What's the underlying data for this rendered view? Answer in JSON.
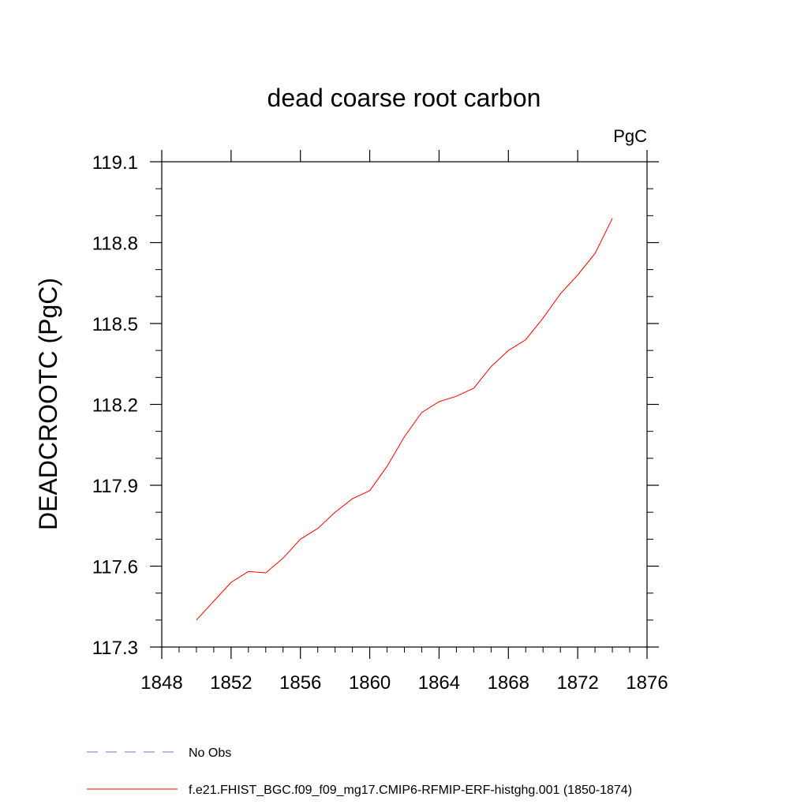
{
  "chart_data": {
    "type": "line",
    "title": "dead coarse root carbon",
    "units_label": "PgC",
    "xlabel": "",
    "ylabel": "DEADCROOTC  (PgC)",
    "xlim": [
      1848,
      1876
    ],
    "ylim": [
      117.3,
      119.1
    ],
    "x_ticks": [
      1848,
      1852,
      1856,
      1860,
      1864,
      1868,
      1872,
      1876
    ],
    "x_tick_labels": [
      "1848",
      "1852",
      "1856",
      "1860",
      "1864",
      "1868",
      "1872",
      "1876"
    ],
    "y_ticks": [
      117.3,
      117.6,
      117.9,
      118.2,
      118.5,
      118.8,
      119.1
    ],
    "y_tick_labels": [
      "117.3",
      "117.6",
      "117.9",
      "118.2",
      "118.5",
      "118.8",
      "119.1"
    ],
    "grid": false,
    "legend_position": "bottom",
    "series": [
      {
        "name": "f.e21.FHIST_BGC.f09_f09_mg17.CMIP6-RFMIP-ERF-histghg.001 (1850-1874)",
        "color": "#ff0000",
        "style": "solid",
        "x": [
          1850,
          1851,
          1852,
          1853,
          1854,
          1855,
          1856,
          1857,
          1858,
          1859,
          1860,
          1861,
          1862,
          1863,
          1864,
          1865,
          1866,
          1867,
          1868,
          1869,
          1870,
          1871,
          1872,
          1873,
          1874
        ],
        "values": [
          117.4,
          117.47,
          117.54,
          117.58,
          117.575,
          117.63,
          117.7,
          117.74,
          117.8,
          117.85,
          117.88,
          117.97,
          118.08,
          118.17,
          118.21,
          118.23,
          118.26,
          118.34,
          118.4,
          118.44,
          118.52,
          118.61,
          118.68,
          118.76,
          118.89
        ]
      },
      {
        "name": "No Obs",
        "color": "#7b6fc9",
        "style": "dashed",
        "x": [],
        "values": []
      }
    ]
  }
}
